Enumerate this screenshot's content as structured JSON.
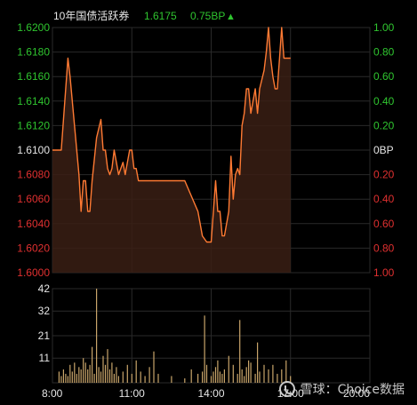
{
  "header": {
    "instrument": "10年国债活跃券",
    "price": "1.6175",
    "change": "0.75BP",
    "change_arrow": "▲"
  },
  "watermark": "雪球：Choice数据",
  "colors": {
    "background": "#000000",
    "grid": "#2a2a2a",
    "price_line": "#ff7a33",
    "area_fill": "#3a1f14",
    "up": "#2fc52f",
    "down": "#e03030",
    "neutral_text": "#e6e6e6",
    "volume_bar": "#c9a56a"
  },
  "chart_data": [
    {
      "type": "line",
      "title": "",
      "xlabel": "",
      "ylabel": "",
      "ylim": [
        1.6,
        1.62
      ],
      "right_axis_ylim": [
        -1.0,
        1.0
      ],
      "right_axis_unit": "BP",
      "baseline": 1.61,
      "grid": true,
      "y_ticks_left": [
        "1.6200",
        "1.6180",
        "1.6160",
        "1.6140",
        "1.6120",
        "1.6100",
        "1.6080",
        "1.6060",
        "1.6040",
        "1.6020",
        "1.6000"
      ],
      "y_ticks_right": [
        "1.00",
        "0.80",
        "0.60",
        "0.40",
        "0.20",
        "0BP",
        "0.20",
        "0.40",
        "0.60",
        "0.80",
        "1.00"
      ],
      "x_ticks": [
        "8:00",
        "11:00",
        "14:00",
        "17:00",
        "20:00"
      ],
      "x_range": [
        "8:00",
        "20:00"
      ],
      "series": [
        {
          "x": [
            "8:00",
            "8:20",
            "8:30",
            "8:35",
            "8:40",
            "8:45",
            "8:50",
            "8:55",
            "9:00",
            "9:05",
            "9:10",
            "9:15",
            "9:20",
            "9:25",
            "9:30",
            "9:40",
            "9:50",
            "9:55",
            "10:00",
            "10:05",
            "10:10",
            "10:15",
            "10:20",
            "10:25",
            "10:30",
            "10:40",
            "10:45",
            "10:50",
            "10:55",
            "11:00",
            "11:05",
            "11:10",
            "11:15",
            "11:20",
            "11:25",
            "11:30",
            "11:35",
            "11:40",
            "11:45",
            "11:50",
            "12:00",
            "12:30",
            "13:00",
            "13:30",
            "13:40",
            "13:50",
            "14:00",
            "14:05",
            "14:10",
            "14:15",
            "14:20",
            "14:25",
            "14:30",
            "14:40",
            "14:45",
            "14:50",
            "14:55",
            "15:00",
            "15:05",
            "15:10",
            "15:15",
            "15:20",
            "15:25",
            "15:30",
            "15:40",
            "15:45",
            "15:50",
            "16:00",
            "16:05",
            "16:10",
            "16:15",
            "16:20",
            "16:25",
            "16:30",
            "16:35",
            "16:40",
            "16:45",
            "16:50",
            "16:55",
            "17:00"
          ],
          "values": [
            1.61,
            1.61,
            1.615,
            1.6175,
            1.616,
            1.614,
            1.612,
            1.61,
            1.608,
            1.605,
            1.6075,
            1.6075,
            1.605,
            1.605,
            1.6075,
            1.611,
            1.6125,
            1.61,
            1.61,
            1.6085,
            1.608,
            1.6085,
            1.61,
            1.609,
            1.608,
            1.609,
            1.608,
            1.609,
            1.61,
            1.61,
            1.6085,
            1.6085,
            1.6075,
            1.6075,
            1.6075,
            1.6075,
            1.6075,
            1.6075,
            1.6075,
            1.6075,
            1.6075,
            1.6075,
            1.6075,
            1.605,
            1.603,
            1.6025,
            1.6025,
            1.605,
            1.6075,
            1.605,
            1.605,
            1.603,
            1.603,
            1.605,
            1.6095,
            1.606,
            1.608,
            1.6085,
            1.608,
            1.612,
            1.613,
            1.615,
            1.615,
            1.613,
            1.615,
            1.613,
            1.615,
            1.6165,
            1.618,
            1.62,
            1.6175,
            1.616,
            1.615,
            1.615,
            1.6175,
            1.62,
            1.6175,
            1.6175,
            1.6175,
            1.6175
          ]
        }
      ]
    },
    {
      "type": "bar",
      "title": "",
      "xlabel": "",
      "ylabel": "",
      "ylim": [
        0,
        42
      ],
      "y_ticks": [
        "42",
        "32",
        "21",
        "11"
      ],
      "x_ticks": [
        "8:00",
        "11:00",
        "14:00",
        "17:00",
        "20:00"
      ],
      "x_range": [
        "8:00",
        "20:00"
      ],
      "series": [
        {
          "x": [
            "8:15",
            "8:20",
            "8:25",
            "8:30",
            "8:35",
            "8:40",
            "8:45",
            "8:50",
            "8:55",
            "9:00",
            "9:05",
            "9:10",
            "9:15",
            "9:20",
            "9:25",
            "9:30",
            "9:35",
            "9:40",
            "9:45",
            "9:50",
            "9:55",
            "10:00",
            "10:05",
            "10:10",
            "10:15",
            "10:20",
            "10:25",
            "10:30",
            "10:40",
            "10:50",
            "11:00",
            "11:10",
            "11:20",
            "11:30",
            "11:40",
            "11:50",
            "12:00",
            "12:30",
            "13:00",
            "13:15",
            "13:30",
            "13:40",
            "13:45",
            "13:50",
            "14:00",
            "14:05",
            "14:10",
            "14:15",
            "14:20",
            "14:25",
            "14:30",
            "14:40",
            "14:50",
            "15:00",
            "15:05",
            "15:10",
            "15:15",
            "15:20",
            "15:25",
            "15:30",
            "15:40",
            "15:45",
            "15:50",
            "16:00",
            "16:10",
            "16:20",
            "16:30",
            "16:40",
            "16:50",
            "17:00"
          ],
          "values": [
            5,
            3,
            6,
            4,
            3,
            8,
            5,
            9,
            4,
            7,
            6,
            11,
            9,
            6,
            8,
            16,
            4,
            42,
            7,
            5,
            12,
            8,
            15,
            6,
            9,
            4,
            7,
            3,
            5,
            8,
            4,
            10,
            5,
            3,
            7,
            14,
            4,
            3,
            2,
            6,
            4,
            5,
            30,
            8,
            3,
            5,
            7,
            10,
            5,
            4,
            6,
            12,
            8,
            4,
            28,
            6,
            3,
            7,
            10,
            9,
            4,
            18,
            5,
            8,
            6,
            8,
            4,
            6,
            10,
            3
          ]
        }
      ]
    }
  ]
}
